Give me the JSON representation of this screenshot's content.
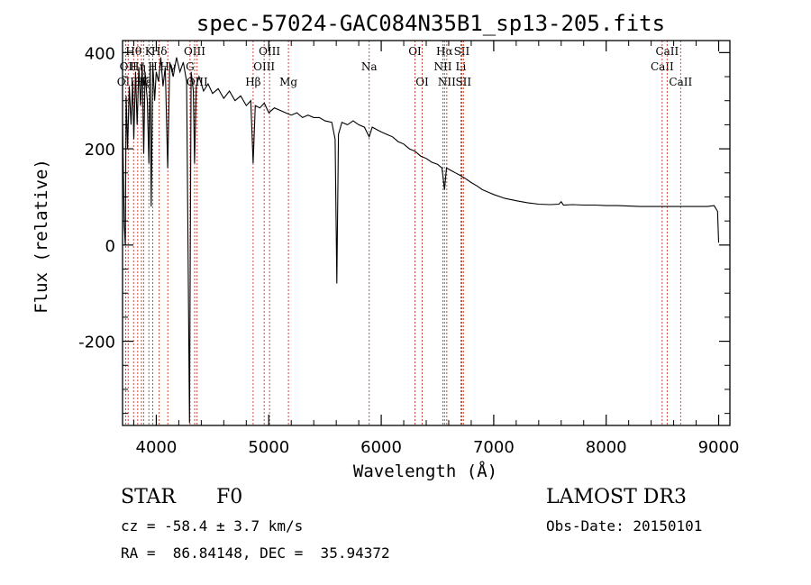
{
  "chart_data": {
    "type": "line",
    "title": "spec-57024-GAC084N35B1_sp13-205.fits",
    "xlabel": "Wavelength (Å)",
    "ylabel": "Flux (relative)",
    "xlim": [
      3700,
      9100
    ],
    "ylim": [
      -375,
      425
    ],
    "xticks": [
      4000,
      5000,
      6000,
      7000,
      8000,
      9000
    ],
    "yticks": [
      -200,
      0,
      200,
      400
    ],
    "series": [
      {
        "name": "spectrum",
        "points": [
          [
            3700,
            260
          ],
          [
            3715,
            40
          ],
          [
            3725,
            0
          ],
          [
            3732,
            310
          ],
          [
            3745,
            200
          ],
          [
            3760,
            330
          ],
          [
            3775,
            250
          ],
          [
            3790,
            340
          ],
          [
            3800,
            220
          ],
          [
            3815,
            360
          ],
          [
            3830,
            250
          ],
          [
            3845,
            370
          ],
          [
            3860,
            290
          ],
          [
            3875,
            380
          ],
          [
            3888,
            190
          ],
          [
            3900,
            360
          ],
          [
            3920,
            300
          ],
          [
            3934,
            170
          ],
          [
            3945,
            370
          ],
          [
            3955,
            80
          ],
          [
            3968,
            380
          ],
          [
            3985,
            300
          ],
          [
            4000,
            360
          ],
          [
            4020,
            340
          ],
          [
            4040,
            390
          ],
          [
            4060,
            330
          ],
          [
            4080,
            370
          ],
          [
            4101,
            160
          ],
          [
            4120,
            380
          ],
          [
            4150,
            350
          ],
          [
            4180,
            390
          ],
          [
            4210,
            360
          ],
          [
            4240,
            380
          ],
          [
            4270,
            340
          ],
          [
            4295,
            -370
          ],
          [
            4310,
            360
          ],
          [
            4330,
            320
          ],
          [
            4340,
            170
          ],
          [
            4355,
            330
          ],
          [
            4380,
            350
          ],
          [
            4420,
            320
          ],
          [
            4460,
            335
          ],
          [
            4500,
            315
          ],
          [
            4550,
            325
          ],
          [
            4600,
            305
          ],
          [
            4650,
            320
          ],
          [
            4700,
            300
          ],
          [
            4750,
            310
          ],
          [
            4800,
            290
          ],
          [
            4840,
            300
          ],
          [
            4861,
            170
          ],
          [
            4880,
            290
          ],
          [
            4920,
            285
          ],
          [
            4960,
            295
          ],
          [
            5000,
            275
          ],
          [
            5050,
            285
          ],
          [
            5100,
            280
          ],
          [
            5150,
            275
          ],
          [
            5200,
            270
          ],
          [
            5250,
            275
          ],
          [
            5300,
            265
          ],
          [
            5350,
            270
          ],
          [
            5400,
            265
          ],
          [
            5450,
            265
          ],
          [
            5500,
            258
          ],
          [
            5560,
            255
          ],
          [
            5590,
            220
          ],
          [
            5605,
            -80
          ],
          [
            5620,
            230
          ],
          [
            5650,
            255
          ],
          [
            5700,
            250
          ],
          [
            5750,
            258
          ],
          [
            5800,
            250
          ],
          [
            5850,
            245
          ],
          [
            5893,
            225
          ],
          [
            5920,
            245
          ],
          [
            5960,
            240
          ],
          [
            6000,
            235
          ],
          [
            6050,
            230
          ],
          [
            6100,
            225
          ],
          [
            6150,
            215
          ],
          [
            6200,
            210
          ],
          [
            6250,
            200
          ],
          [
            6300,
            195
          ],
          [
            6350,
            185
          ],
          [
            6400,
            180
          ],
          [
            6450,
            172
          ],
          [
            6500,
            168
          ],
          [
            6540,
            160
          ],
          [
            6563,
            115
          ],
          [
            6580,
            160
          ],
          [
            6620,
            155
          ],
          [
            6660,
            150
          ],
          [
            6700,
            145
          ],
          [
            6750,
            138
          ],
          [
            6800,
            130
          ],
          [
            6850,
            123
          ],
          [
            6900,
            115
          ],
          [
            6950,
            110
          ],
          [
            7000,
            105
          ],
          [
            7100,
            97
          ],
          [
            7200,
            92
          ],
          [
            7300,
            88
          ],
          [
            7400,
            85
          ],
          [
            7500,
            84
          ],
          [
            7580,
            85
          ],
          [
            7600,
            90
          ],
          [
            7620,
            83
          ],
          [
            7700,
            84
          ],
          [
            7800,
            83
          ],
          [
            7900,
            83
          ],
          [
            8000,
            82
          ],
          [
            8100,
            82
          ],
          [
            8200,
            81
          ],
          [
            8300,
            80
          ],
          [
            8400,
            80
          ],
          [
            8500,
            80
          ],
          [
            8600,
            80
          ],
          [
            8700,
            80
          ],
          [
            8800,
            80
          ],
          [
            8900,
            80
          ],
          [
            8960,
            82
          ],
          [
            8990,
            70
          ],
          [
            9000,
            5
          ]
        ]
      }
    ],
    "lines": [
      {
        "x": 3727,
        "labels": [
          {
            "text": "OII",
            "row": 3
          }
        ]
      },
      {
        "x": 3750,
        "labels": [
          {
            "text": "OII",
            "row": 2
          }
        ]
      },
      {
        "x": 3798,
        "labels": [
          {
            "text": "Hθ",
            "row": 1
          }
        ]
      },
      {
        "x": 3835,
        "labels": [
          {
            "text": "Hη",
            "row": 2
          }
        ]
      },
      {
        "x": 3868,
        "labels": [
          {
            "text": "Hζ",
            "row": 3
          }
        ]
      },
      {
        "x": 3889,
        "labels": [
          {
            "text": "Hε",
            "row": 3
          }
        ]
      },
      {
        "x": 3934,
        "labels": [
          {
            "text": "K",
            "row": 1
          }
        ]
      },
      {
        "x": 3969,
        "labels": [
          {
            "text": "H",
            "row": 2
          }
        ]
      },
      {
        "x": 4026,
        "labels": [
          {
            "text": "Hδ",
            "row": 1
          }
        ]
      },
      {
        "x": 4102,
        "labels": [
          {
            "text": "Hγ",
            "row": 2
          }
        ]
      },
      {
        "x": 4300,
        "labels": [
          {
            "text": "G",
            "row": 2
          }
        ]
      },
      {
        "x": 4341,
        "labels": [
          {
            "text": "OIII",
            "row": 1
          }
        ]
      },
      {
        "x": 4363,
        "labels": [
          {
            "text": "OIII",
            "row": 3
          }
        ]
      },
      {
        "x": 4861,
        "labels": [
          {
            "text": "Hβ",
            "row": 3
          }
        ]
      },
      {
        "x": 4959,
        "labels": [
          {
            "text": "OIII",
            "row": 2
          }
        ]
      },
      {
        "x": 5007,
        "labels": [
          {
            "text": "OIII",
            "row": 1
          }
        ]
      },
      {
        "x": 5175,
        "labels": [
          {
            "text": "Mg",
            "row": 3
          }
        ]
      },
      {
        "x": 5893,
        "labels": [
          {
            "text": "Na",
            "row": 2
          }
        ]
      },
      {
        "x": 6300,
        "labels": [
          {
            "text": "OI",
            "row": 1
          }
        ]
      },
      {
        "x": 6364,
        "labels": [
          {
            "text": "OI",
            "row": 3
          }
        ]
      },
      {
        "x": 6548,
        "labels": [
          {
            "text": "NII",
            "row": 2
          }
        ]
      },
      {
        "x": 6563,
        "labels": [
          {
            "text": "Hα",
            "row": 1
          }
        ]
      },
      {
        "x": 6583,
        "labels": [
          {
            "text": "NII",
            "row": 3
          }
        ]
      },
      {
        "x": 6708,
        "labels": [
          {
            "text": "Li",
            "row": 2
          }
        ]
      },
      {
        "x": 6716,
        "labels": [
          {
            "text": "SII",
            "row": 1
          }
        ]
      },
      {
        "x": 6731,
        "labels": [
          {
            "text": "SII",
            "row": 3
          }
        ]
      },
      {
        "x": 8498,
        "labels": [
          {
            "text": "CaII",
            "row": 2
          }
        ]
      },
      {
        "x": 8542,
        "labels": [
          {
            "text": "CaII",
            "row": 1
          }
        ]
      },
      {
        "x": 8662,
        "labels": [
          {
            "text": "CaII",
            "row": 3
          }
        ]
      }
    ]
  },
  "info": {
    "class": "STAR",
    "subclass": "F0",
    "survey": "LAMOST DR3",
    "cz": "cz = -58.4 ± 3.7 km/s",
    "obs_date": "Obs-Date: 20150101",
    "coords": "RA =  86.84148, DEC =  35.94372"
  },
  "colors": {
    "axis": "#000000",
    "line_marker": "#c0392b",
    "spectrum": "#000000"
  }
}
